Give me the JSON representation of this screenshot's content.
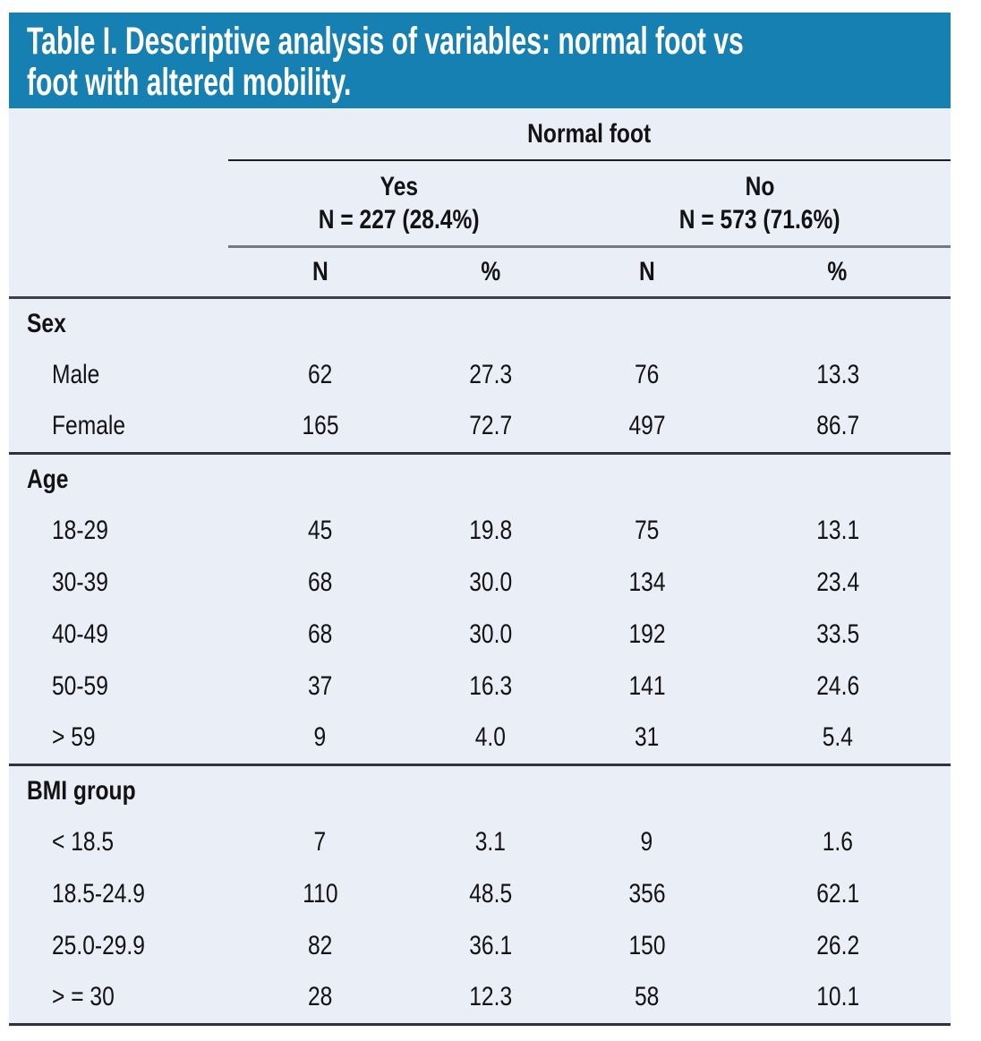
{
  "title": {
    "lines": [
      "Table I. Descriptive analysis of variables: normal foot vs",
      "foot with altered mobility."
    ]
  },
  "colors": {
    "accent_bar": "#1780b2",
    "table_background": "#eaeef7",
    "title_text": "#ffffff",
    "body_text": "#131313",
    "rule_dark": "#2f3339",
    "rule_gray": "#737a82"
  },
  "header": {
    "group_label": "Normal foot",
    "subgroups": [
      {
        "label": "Yes",
        "count": "N = 227 (28.4%)"
      },
      {
        "label": "No",
        "count": "N = 573 (71.6%)"
      }
    ],
    "columns": [
      "N",
      "%",
      "N",
      "%"
    ]
  },
  "sections": [
    {
      "label": "Sex",
      "rows": [
        {
          "label": "Male",
          "values": [
            "62",
            "27.3",
            "76",
            "13.3"
          ]
        },
        {
          "label": "Female",
          "values": [
            "165",
            "72.7",
            "497",
            "86.7"
          ]
        }
      ]
    },
    {
      "label": "Age",
      "rows": [
        {
          "label": "18-29",
          "values": [
            "45",
            "19.8",
            "75",
            "13.1"
          ]
        },
        {
          "label": "30-39",
          "values": [
            "68",
            "30.0",
            "134",
            "23.4"
          ]
        },
        {
          "label": "40-49",
          "values": [
            "68",
            "30.0",
            "192",
            "33.5"
          ]
        },
        {
          "label": "50-59",
          "values": [
            "37",
            "16.3",
            "141",
            "24.6"
          ]
        },
        {
          "label": "> 59",
          "values": [
            "9",
            "4.0",
            "31",
            "5.4"
          ]
        }
      ]
    },
    {
      "label": "BMI group",
      "rows": [
        {
          "label": "< 18.5",
          "values": [
            "7",
            "3.1",
            "9",
            "1.6"
          ]
        },
        {
          "label": "18.5-24.9",
          "values": [
            "110",
            "48.5",
            "356",
            "62.1"
          ]
        },
        {
          "label": "25.0-29.9",
          "values": [
            "82",
            "36.1",
            "150",
            "26.2"
          ]
        },
        {
          "label": "> = 30",
          "values": [
            "28",
            "12.3",
            "58",
            "10.1"
          ]
        }
      ]
    }
  ]
}
